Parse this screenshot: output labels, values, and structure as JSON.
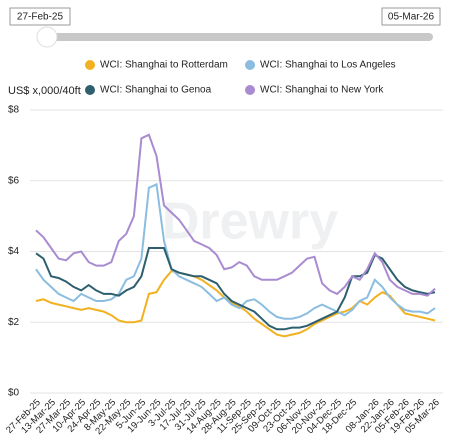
{
  "slider": {
    "start": "27-Feb-25",
    "end": "05-Mar-26"
  },
  "watermark": "Drewry",
  "chart_data": {
    "type": "line",
    "ylabel": "US$ x,000/40ft",
    "categories": [
      "27-Feb-25",
      null,
      "13-Mar-25",
      null,
      "27-Mar-25",
      null,
      "10-Apr-25",
      null,
      "24-Apr-25",
      null,
      "8-May-25",
      null,
      "22-May-25",
      null,
      "5-Jun-25",
      null,
      "19-Jun-25",
      null,
      "3-Jul-25",
      null,
      "17-Jul-25",
      null,
      "31-Jul-25",
      null,
      "14-Aug-25",
      null,
      "28-Aug-25",
      null,
      "11-Sep-25",
      null,
      "25-Sep-25",
      null,
      "09-Oct-25",
      null,
      "23-Oct-25",
      null,
      "06-Nov-25",
      null,
      "20-Nov-25",
      null,
      "04-Dec-25",
      null,
      "18-Dec-25",
      null,
      null,
      "08-Jan-26",
      null,
      "22-Jan-26",
      null,
      "05-Feb-26",
      null,
      "19-Feb-26",
      null,
      "05-Mar-26"
    ],
    "series": [
      {
        "name": "WCI: Shanghai to Rotterdam",
        "color": "#f2b120",
        "values": [
          2.6,
          2.65,
          2.55,
          2.5,
          2.45,
          2.4,
          2.35,
          2.4,
          2.35,
          2.3,
          2.2,
          2.05,
          2.0,
          2.0,
          2.05,
          2.8,
          2.85,
          3.2,
          3.45,
          3.4,
          3.35,
          3.3,
          3.2,
          3.05,
          2.9,
          2.7,
          2.55,
          2.45,
          2.3,
          2.1,
          1.95,
          1.8,
          1.65,
          1.6,
          1.65,
          1.7,
          1.8,
          1.95,
          2.05,
          2.15,
          2.25,
          2.3,
          2.4,
          2.6,
          2.5,
          2.7,
          2.85,
          2.75,
          2.5,
          2.25,
          2.2,
          2.15,
          2.1,
          2.05
        ]
      },
      {
        "name": "WCI: Shanghai to Los Angeles",
        "color": "#8bbde0",
        "values": [
          3.5,
          3.2,
          3.0,
          2.8,
          2.7,
          2.6,
          2.8,
          2.7,
          2.6,
          2.6,
          2.65,
          2.8,
          3.2,
          3.3,
          3.8,
          5.8,
          5.9,
          4.3,
          3.5,
          3.3,
          3.2,
          3.1,
          3.0,
          2.8,
          2.6,
          2.7,
          2.5,
          2.4,
          2.6,
          2.65,
          2.5,
          2.3,
          2.15,
          2.1,
          2.1,
          2.15,
          2.25,
          2.4,
          2.5,
          2.4,
          2.3,
          2.2,
          2.35,
          2.6,
          2.7,
          3.2,
          3.0,
          2.7,
          2.5,
          2.35,
          2.3,
          2.3,
          2.25,
          2.4
        ]
      },
      {
        "name": "WCI: Shanghai to Genoa",
        "color": "#2e5f6e",
        "values": [
          3.95,
          3.8,
          3.3,
          3.25,
          3.15,
          3.0,
          2.9,
          3.05,
          2.9,
          2.8,
          2.8,
          2.75,
          2.9,
          3.0,
          3.3,
          4.1,
          4.1,
          4.1,
          3.5,
          3.4,
          3.35,
          3.3,
          3.3,
          3.2,
          3.1,
          2.8,
          2.6,
          2.5,
          2.4,
          2.3,
          2.1,
          1.9,
          1.8,
          1.8,
          1.85,
          1.85,
          1.9,
          2.0,
          2.1,
          2.2,
          2.3,
          2.7,
          3.3,
          3.3,
          3.4,
          3.9,
          3.8,
          3.5,
          3.2,
          3.0,
          2.9,
          2.85,
          2.8,
          2.85
        ]
      },
      {
        "name": "WCI: Shanghai to New York",
        "color": "#a98bd1",
        "values": [
          4.6,
          4.4,
          4.1,
          3.8,
          3.75,
          3.95,
          4.0,
          3.7,
          3.6,
          3.6,
          3.7,
          4.3,
          4.5,
          5.0,
          7.2,
          7.3,
          6.7,
          5.3,
          5.1,
          4.9,
          4.6,
          4.3,
          4.2,
          4.1,
          3.9,
          3.5,
          3.55,
          3.7,
          3.6,
          3.3,
          3.2,
          3.2,
          3.2,
          3.3,
          3.4,
          3.6,
          3.8,
          3.85,
          3.1,
          2.9,
          2.8,
          3.0,
          3.3,
          3.2,
          3.5,
          3.95,
          3.7,
          3.2,
          3.0,
          2.9,
          2.8,
          2.8,
          2.75,
          2.95
        ]
      }
    ],
    "ylim": [
      0,
      8
    ],
    "yticks": [
      {
        "value": 0,
        "label": "$0"
      },
      {
        "value": 2,
        "label": "$2"
      },
      {
        "value": 4,
        "label": "$4"
      },
      {
        "value": 6,
        "label": "$6"
      },
      {
        "value": 8,
        "label": "$8"
      }
    ],
    "grid": true
  }
}
